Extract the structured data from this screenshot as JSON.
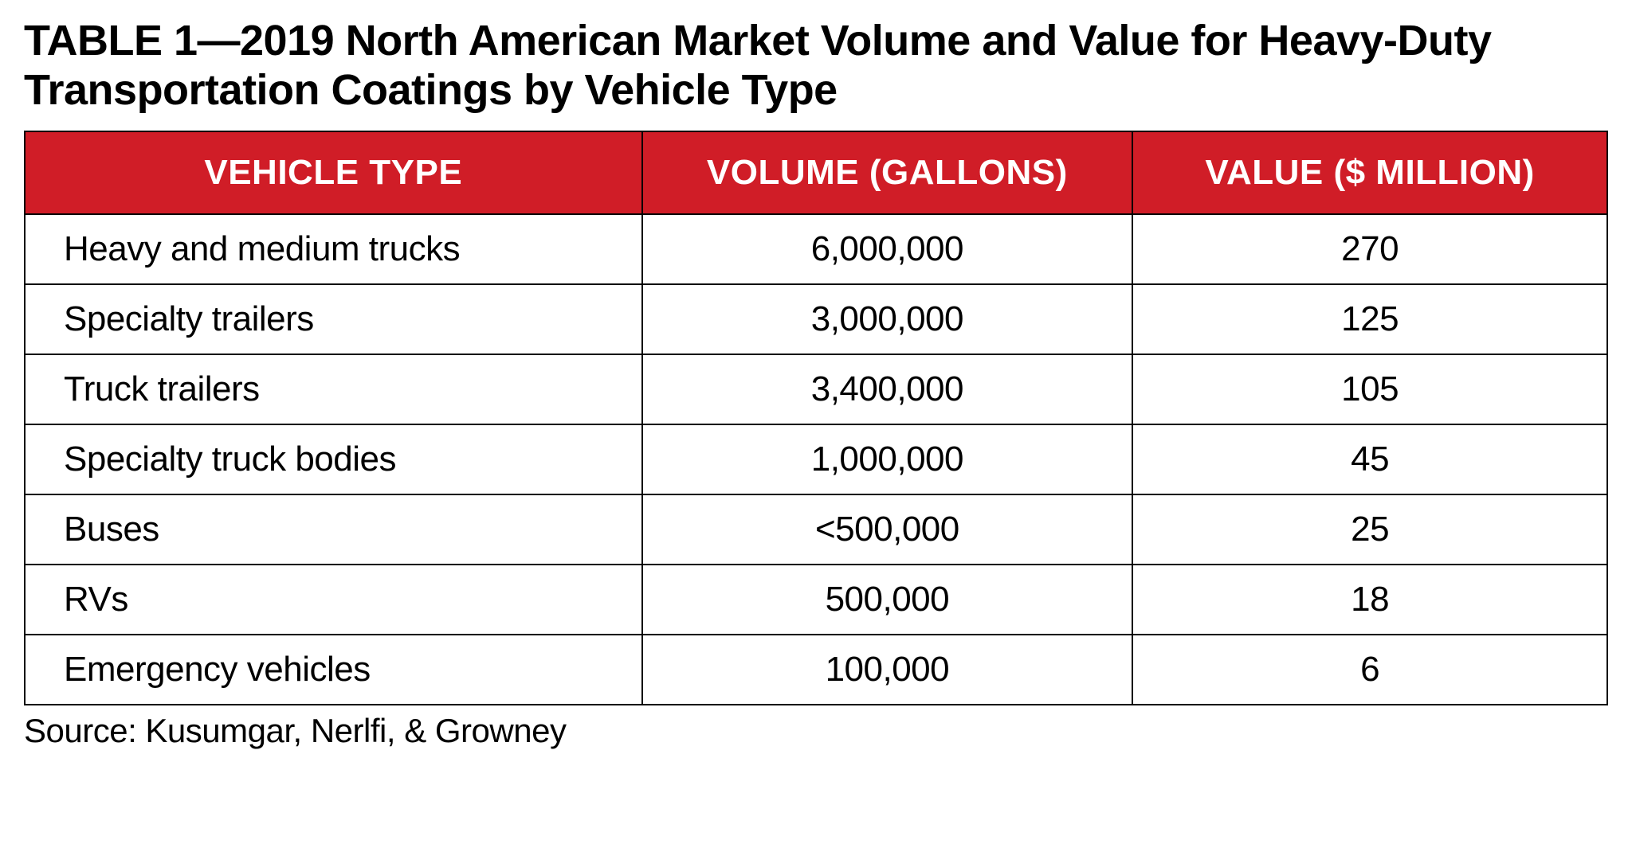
{
  "title": "TABLE 1—2019 North American Market Volume and Value for Heavy-Duty Transportation Coatings by Vehicle Type",
  "table": {
    "type": "table",
    "header_bg": "#d01d27",
    "header_text_color": "#ffffff",
    "border_color": "#000000",
    "cell_bg": "#ffffff",
    "text_color": "#000000",
    "title_fontsize": 54,
    "header_fontsize": 44,
    "cell_fontsize": 44,
    "column_widths_pct": [
      39,
      31,
      30
    ],
    "columns": [
      "VEHICLE TYPE",
      "VOLUME (GALLONS)",
      "VALUE ($ MILLION)"
    ],
    "rows": [
      {
        "label": "Heavy and medium trucks",
        "volume": "6,000,000",
        "value": "270"
      },
      {
        "label": "Specialty trailers",
        "volume": "3,000,000",
        "value": "125"
      },
      {
        "label": "Truck trailers",
        "volume": "3,400,000",
        "value": "105"
      },
      {
        "label": "Specialty truck bodies",
        "volume": "1,000,000",
        "value": "45"
      },
      {
        "label": "Buses",
        "volume": "<500,000",
        "value": "25"
      },
      {
        "label": "RVs",
        "volume": "500,000",
        "value": "18"
      },
      {
        "label": "Emergency vehicles",
        "volume": "100,000",
        "value": "6"
      }
    ]
  },
  "source": "Source: Kusumgar, Nerlfi, & Growney"
}
